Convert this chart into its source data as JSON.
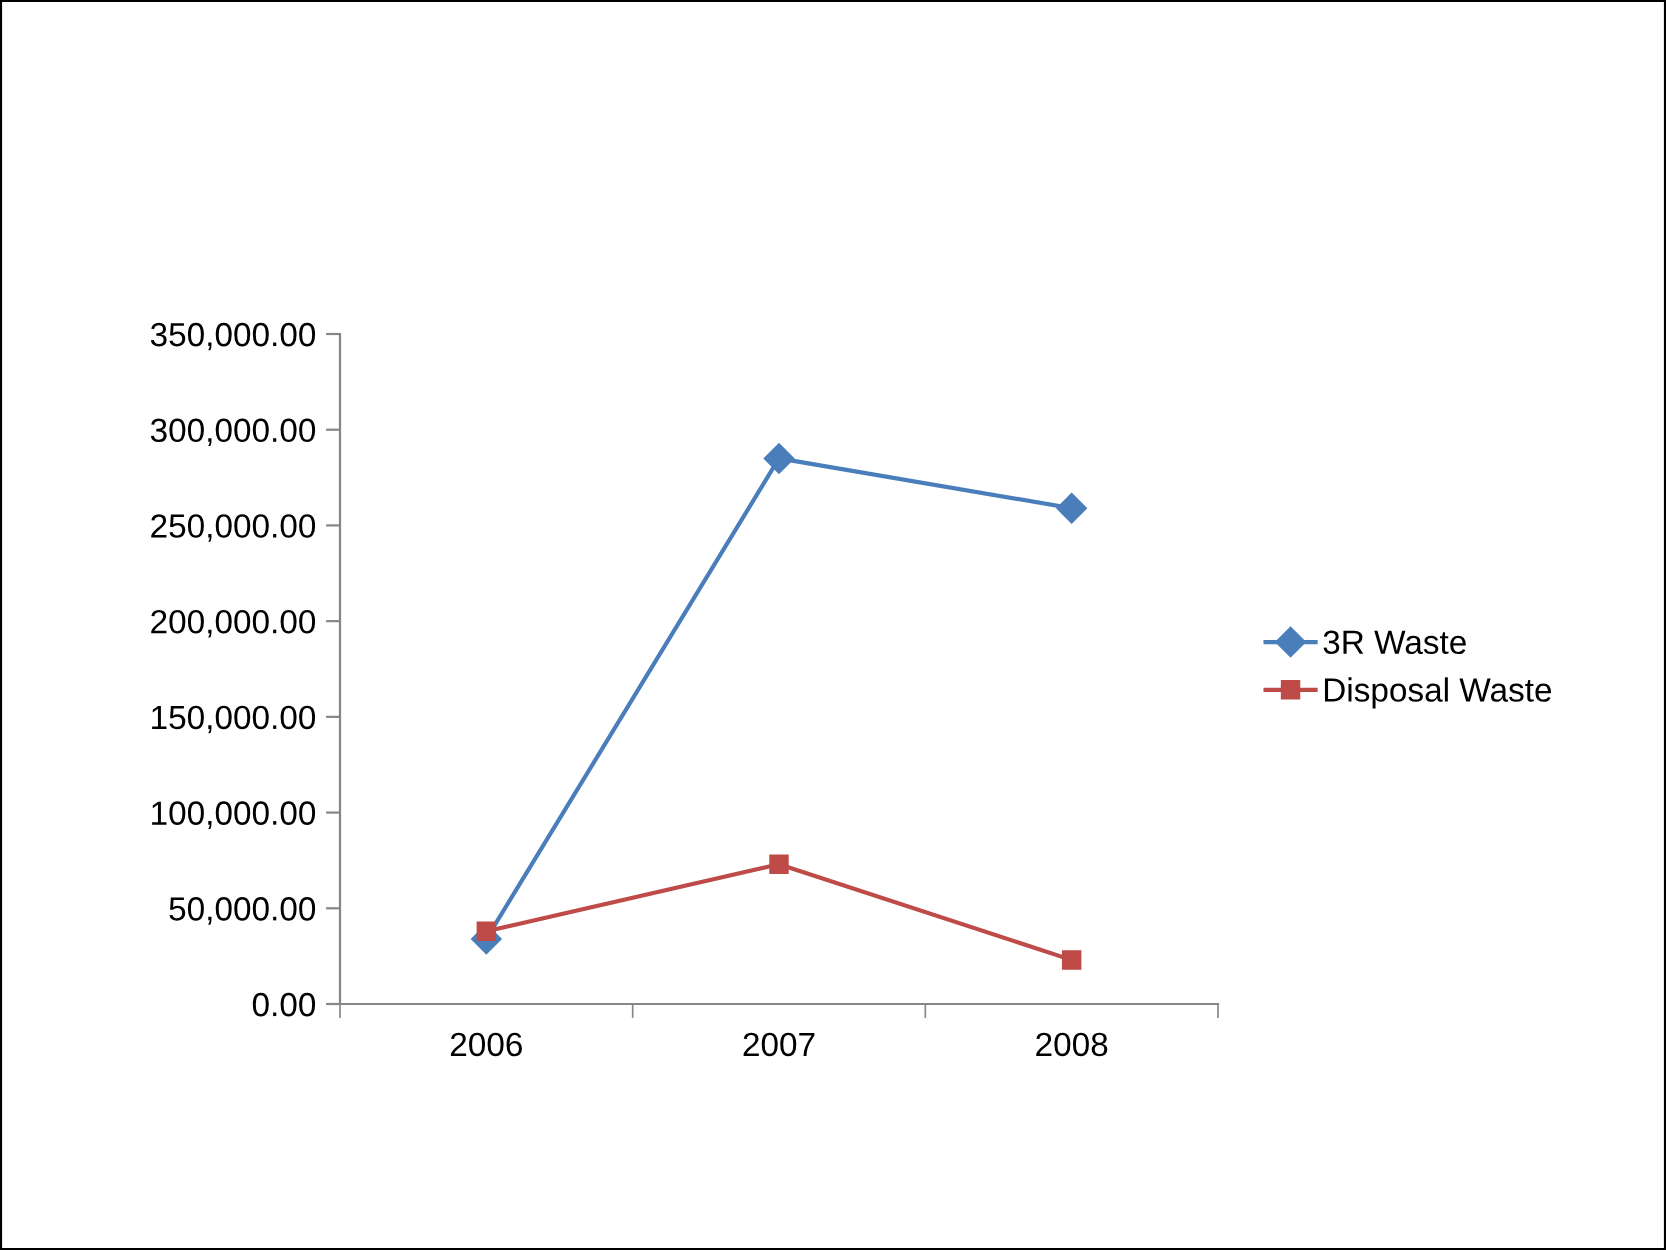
{
  "chart_data": {
    "type": "line",
    "categories": [
      "2006",
      "2007",
      "2008"
    ],
    "series": [
      {
        "name": "3R Waste",
        "color": "#4a7ebb",
        "marker": "diamond",
        "values": [
          34000,
          285000,
          259000
        ]
      },
      {
        "name": "Disposal Waste",
        "color": "#be4b48",
        "marker": "square",
        "values": [
          38000,
          73000,
          23000
        ]
      }
    ],
    "ylim": [
      0,
      350000
    ],
    "yticks": [
      {
        "value": 0,
        "label": "0.00"
      },
      {
        "value": 50000,
        "label": "50,000.00"
      },
      {
        "value": 100000,
        "label": "100,000.00"
      },
      {
        "value": 150000,
        "label": "150,000.00"
      },
      {
        "value": 200000,
        "label": "200,000.00"
      },
      {
        "value": 250000,
        "label": "250,000.00"
      },
      {
        "value": 300000,
        "label": "300,000.00"
      },
      {
        "value": 350000,
        "label": "350,000.00"
      }
    ],
    "grid": false,
    "legend": "right",
    "line_style": "solid"
  }
}
